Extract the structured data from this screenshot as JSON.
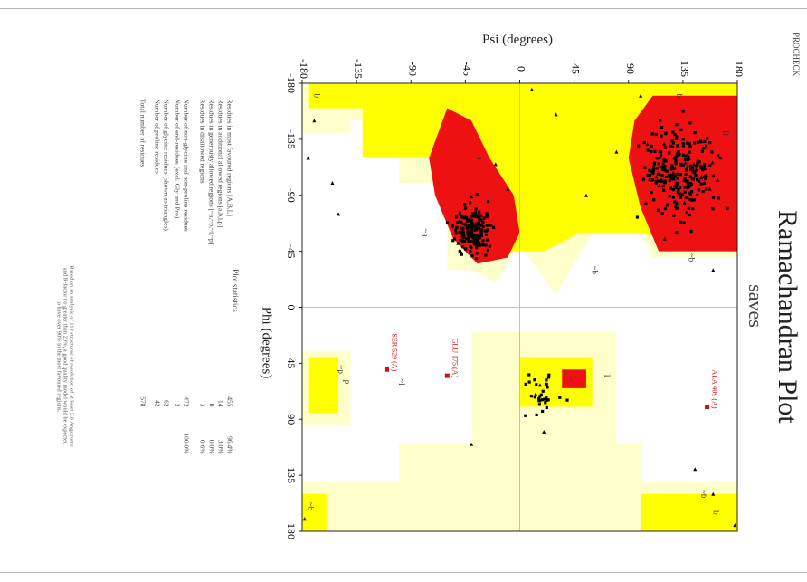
{
  "header": {
    "tag": "PROCHECK"
  },
  "chart_data": {
    "type": "scatter",
    "title": "Ramachandran Plot",
    "subtitle": "saves",
    "xlabel": "Phi (degrees)",
    "ylabel": "Psi (degrees)",
    "xlim": [
      -180,
      180
    ],
    "ylim": [
      -180,
      180
    ],
    "x_ticks": [
      "-180",
      "-135",
      "-90",
      "-45",
      "0",
      "45",
      "90",
      "135",
      "180"
    ],
    "y_ticks": [
      "-180",
      "-135",
      "-90",
      "-45",
      "0",
      "45",
      "90",
      "135",
      "180"
    ],
    "region_colors": {
      "core": "#ee1111",
      "allowed": "#ffff00",
      "generous": "#ffffcc",
      "disallowed": "#ffffff"
    },
    "region_labels": [
      {
        "text": "B",
        "phi": -140,
        "psi": 168
      },
      {
        "text": "b",
        "phi": -170,
        "psi": 130
      },
      {
        "text": "b",
        "phi": -170,
        "psi": -170
      },
      {
        "text": "A",
        "phi": -68,
        "psi": -40
      },
      {
        "text": "a",
        "phi": -120,
        "psi": -35
      },
      {
        "text": "~a",
        "phi": -60,
        "psi": -80
      },
      {
        "text": "~b",
        "phi": -40,
        "psi": 140
      },
      {
        "text": "~l",
        "phi": 60,
        "psi": -100
      },
      {
        "text": "l",
        "phi": 55,
        "psi": 70
      },
      {
        "text": "L",
        "phi": 57,
        "psi": 42
      },
      {
        "text": "~p",
        "phi": 50,
        "psi": -150
      },
      {
        "text": "p",
        "phi": 60,
        "psi": -145
      },
      {
        "text": "~b",
        "phi": 150,
        "psi": 150
      },
      {
        "text": "~b",
        "phi": 160,
        "psi": -175
      },
      {
        "text": "b",
        "phi": 165,
        "psi": 160
      },
      {
        "text": "~b",
        "phi": -30,
        "psi": 60
      }
    ],
    "labeled_residues": [
      {
        "label": "ALA 409 (A)",
        "phi": 80,
        "psi": 155
      },
      {
        "label": "GLU 175 (A)",
        "phi": 55,
        "psi": -60
      },
      {
        "label": "SER 529 (A)",
        "phi": 50,
        "psi": -110
      }
    ],
    "clusters": [
      {
        "region": "beta",
        "center": [
          -110,
          132
        ],
        "spread": [
          25,
          22
        ],
        "n": 260
      },
      {
        "region": "alpha",
        "center": [
          -63,
          -40
        ],
        "spread": [
          14,
          12
        ],
        "n": 170
      },
      {
        "region": "left-alpha",
        "center": [
          70,
          20
        ],
        "spread": [
          12,
          12
        ],
        "n": 34
      }
    ],
    "statistics": {
      "heading": "Plot statistics",
      "rows": [
        {
          "label": "Residues in most favoured regions [A,B,L]",
          "count": "455",
          "pct": "96.4%"
        },
        {
          "label": "Residues in additional allowed regions [a,b,l,p]",
          "count": "14",
          "pct": "3.0%"
        },
        {
          "label": "Residues in generously allowed regions [~a,~b,~l,~p]",
          "count": "0",
          "pct": "0.0%"
        },
        {
          "label": "Residues in disallowed regions",
          "count": "3",
          "pct": "0.6%"
        },
        {
          "label": "Number of non-glycine and non-proline residues",
          "count": "472",
          "pct": "100.0%"
        },
        {
          "label": "Number of end-residues (excl. Gly and Pro)",
          "count": "2",
          "pct": ""
        },
        {
          "label": "Number of glycine residues (shown as triangles)",
          "count": "62",
          "pct": ""
        },
        {
          "label": "Number of proline residues",
          "count": "42",
          "pct": ""
        },
        {
          "label": "Total number of residues",
          "count": "578",
          "pct": ""
        }
      ],
      "footnote_1": "Based on an analysis of 118 structures of resolution of at least 2.0 Angstroms",
      "footnote_2": "and R-factor no greater than 20%, a good quality model would be expected",
      "footnote_3": "to have over 90% in the most favoured regions."
    }
  }
}
